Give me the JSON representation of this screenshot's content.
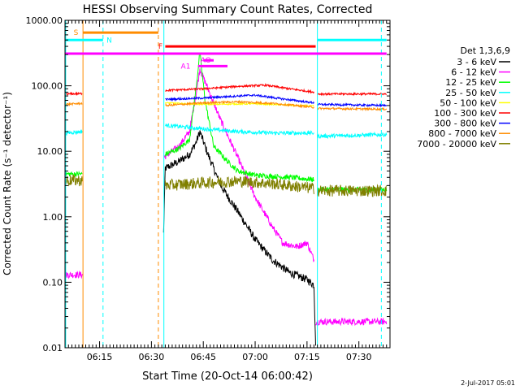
{
  "chart_data": {
    "type": "line",
    "title": "HESSI Observing Summary Count Rates, Corrected",
    "xlabel": "Start Time (20-Oct-14 06:00:42)",
    "ylabel": "Corrected Count Rate (s⁻¹ detector⁻¹)",
    "y_scale": "log",
    "xlim": [
      "06:05",
      "07:39"
    ],
    "ylim": [
      0.01,
      1000
    ],
    "x_ticks": [
      {
        "t": "06:15",
        "label": "06:15"
      },
      {
        "t": "06:30",
        "label": "06:30"
      },
      {
        "t": "06:45",
        "label": "06:45"
      },
      {
        "t": "07:00",
        "label": "07:00"
      },
      {
        "t": "07:15",
        "label": "07:15"
      },
      {
        "t": "07:30",
        "label": "07:30"
      }
    ],
    "y_ticks": [
      {
        "v": 0.01,
        "label": "0.01"
      },
      {
        "v": 0.1,
        "label": "0.10"
      },
      {
        "v": 1,
        "label": "1.00"
      },
      {
        "v": 10,
        "label": "10.00"
      },
      {
        "v": 100,
        "label": "100.00"
      },
      {
        "v": 1000,
        "label": "1000.00"
      }
    ],
    "legend_title": "Det 1,3,6,9",
    "legend_position": "right",
    "series": [
      {
        "name": "3 - 6 keV",
        "color": "#000000",
        "noise": 0.06,
        "segments": [
          [
            [
              "06:33.5",
              0.55
            ],
            [
              "06:34",
              5.5
            ],
            [
              "06:38",
              7
            ],
            [
              "06:41",
              9
            ],
            [
              "06:43",
              14
            ],
            [
              "06:44",
              20
            ],
            [
              "06:46",
              10
            ],
            [
              "06:50",
              3
            ],
            [
              "06:55",
              1.2
            ],
            [
              "07:00",
              0.45
            ],
            [
              "07:05",
              0.22
            ],
            [
              "07:10",
              0.14
            ],
            [
              "07:15",
              0.11
            ],
            [
              "07:17",
              0.09
            ],
            [
              "07:17.5",
              0.012
            ]
          ]
        ]
      },
      {
        "name": "6 - 12 keV",
        "color": "#ff00ff",
        "noise": 0.05,
        "segments": [
          [
            [
              "06:05",
              0.13
            ],
            [
              "06:10",
              0.13
            ]
          ],
          [
            [
              "06:33.5",
              8
            ],
            [
              "06:38",
              12
            ],
            [
              "06:41",
              20
            ],
            [
              "06:43",
              80
            ],
            [
              "06:44",
              180
            ],
            [
              "06:46",
              100
            ],
            [
              "06:50",
              30
            ],
            [
              "06:55",
              8
            ],
            [
              "07:00",
              2
            ],
            [
              "07:05",
              0.7
            ],
            [
              "07:08",
              0.4
            ],
            [
              "07:12",
              0.35
            ],
            [
              "07:15",
              0.4
            ],
            [
              "07:17",
              0.22
            ]
          ],
          [
            [
              "07:17.5",
              0.025
            ],
            [
              "07:38",
              0.025
            ]
          ]
        ]
      },
      {
        "name": "12 - 25 keV",
        "color": "#00ff00",
        "noise": 0.04,
        "segments": [
          [
            [
              "06:05",
              4.5
            ],
            [
              "06:10",
              4.5
            ]
          ],
          [
            [
              "06:34",
              9
            ],
            [
              "06:38",
              11
            ],
            [
              "06:41",
              15
            ],
            [
              "06:43",
              100
            ],
            [
              "06:44",
              330
            ],
            [
              "06:45.5",
              60
            ],
            [
              "06:48",
              12
            ],
            [
              "06:52",
              7
            ],
            [
              "06:55",
              5
            ],
            [
              "07:00",
              4.3
            ],
            [
              "07:10",
              4.0
            ],
            [
              "07:17",
              3.7
            ]
          ],
          [
            [
              "07:18",
              2.6
            ],
            [
              "07:38",
              2.6
            ]
          ]
        ]
      },
      {
        "name": "25 - 50 keV",
        "color": "#00ffff",
        "noise": 0.03,
        "segments": [
          [
            [
              "06:05",
              19
            ],
            [
              "06:10",
              20
            ]
          ],
          [
            [
              "06:34",
              25
            ],
            [
              "06:45",
              22
            ],
            [
              "06:55",
              20
            ],
            [
              "07:05",
              19
            ],
            [
              "07:17",
              19
            ]
          ],
          [
            [
              "07:18",
              17
            ],
            [
              "07:38",
              18
            ]
          ]
        ]
      },
      {
        "name": "50 - 100 keV",
        "color": "#ffff00",
        "noise": 0.01,
        "segments": [
          [
            [
              "06:34",
              55
            ],
            [
              "06:45",
              52
            ],
            [
              "07:00",
              53
            ],
            [
              "07:17",
              49
            ]
          ]
        ]
      },
      {
        "name": "100 - 300 keV",
        "color": "#ff0000",
        "noise": 0.015,
        "segments": [
          [
            [
              "06:05",
              75
            ],
            [
              "06:10",
              76
            ]
          ],
          [
            [
              "06:34",
              85
            ],
            [
              "06:45",
              90
            ],
            [
              "06:55",
              98
            ],
            [
              "07:03",
              102
            ],
            [
              "07:10",
              90
            ],
            [
              "07:17",
              80
            ]
          ],
          [
            [
              "07:18",
              75
            ],
            [
              "07:38",
              75
            ]
          ]
        ]
      },
      {
        "name": "300 - 800 keV",
        "color": "#0000ff",
        "noise": 0.015,
        "segments": [
          [
            [
              "06:34",
              62
            ],
            [
              "06:45",
              65
            ],
            [
              "06:55",
              70
            ],
            [
              "07:00",
              72
            ],
            [
              "07:08",
              63
            ],
            [
              "07:17",
              55
            ]
          ],
          [
            [
              "07:18",
              52
            ],
            [
              "07:38",
              50
            ]
          ]
        ]
      },
      {
        "name": "800 - 7000 keV",
        "color": "#ff8c00",
        "noise": 0.015,
        "segments": [
          [
            [
              "06:05",
              52
            ],
            [
              "06:10",
              54
            ]
          ],
          [
            [
              "06:34",
              50
            ],
            [
              "06:45",
              55
            ],
            [
              "06:55",
              57
            ],
            [
              "07:05",
              54
            ],
            [
              "07:17",
              47
            ]
          ],
          [
            [
              "07:18",
              45
            ],
            [
              "07:38",
              44
            ]
          ]
        ]
      },
      {
        "name": "7000 - 20000 keV",
        "color": "#808000",
        "noise": 0.09,
        "segments": [
          [
            [
              "06:05",
              3.6
            ],
            [
              "06:10",
              3.6
            ]
          ],
          [
            [
              "06:34",
              3
            ],
            [
              "06:45",
              3.3
            ],
            [
              "06:55",
              3.5
            ],
            [
              "07:05",
              3.2
            ],
            [
              "07:17",
              2.7
            ]
          ],
          [
            [
              "07:18",
              2.5
            ],
            [
              "07:38",
              2.5
            ]
          ]
        ]
      }
    ],
    "vertical_markers": [
      {
        "t": "06:05.2",
        "color": "#00ffff",
        "style": "solid"
      },
      {
        "t": "06:10.2",
        "color": "#ff8c00",
        "style": "solid"
      },
      {
        "t": "06:16",
        "color": "#00ffff",
        "style": "dashed"
      },
      {
        "t": "06:32",
        "color": "#ff8c00",
        "style": "dashed"
      },
      {
        "t": "06:33.6",
        "color": "#00ffff",
        "style": "solid"
      },
      {
        "t": "07:18",
        "color": "#00ffff",
        "style": "solid"
      },
      {
        "t": "07:36.5",
        "color": "#00ffff",
        "style": "dashed"
      }
    ],
    "flag_bars": [
      {
        "label": "S",
        "color": "#ff8c00",
        "t0": "06:10.2",
        "t1": "06:32",
        "y": 650,
        "label_at": "06:07.5"
      },
      {
        "label": "N",
        "color": "#00ffff",
        "t0": "06:05",
        "t1": "06:16",
        "y": 500,
        "label_at": "06:17"
      },
      {
        "label": "N",
        "color": "#00ffff",
        "t0": "07:18",
        "t1": "07:38",
        "y": 500
      },
      {
        "label": "F",
        "color": "#ff0000",
        "t0": "06:34",
        "t1": "07:17.5",
        "y": 400,
        "label_at": "06:32"
      },
      {
        "label": "",
        "color": "#ff00ff",
        "t0": "06:05",
        "t1": "07:38",
        "y": 310
      },
      {
        "label": "AO",
        "color": "#ff00ff",
        "t0": "06:45",
        "t1": "06:48",
        "y": 245,
        "label_at": "06:44.2"
      },
      {
        "label": "A1",
        "color": "#ff00ff",
        "t0": "06:43.5",
        "t1": "06:52",
        "y": 200,
        "label_at": "06:38.5"
      }
    ],
    "footer": "2-Jul-2017 05:01"
  }
}
